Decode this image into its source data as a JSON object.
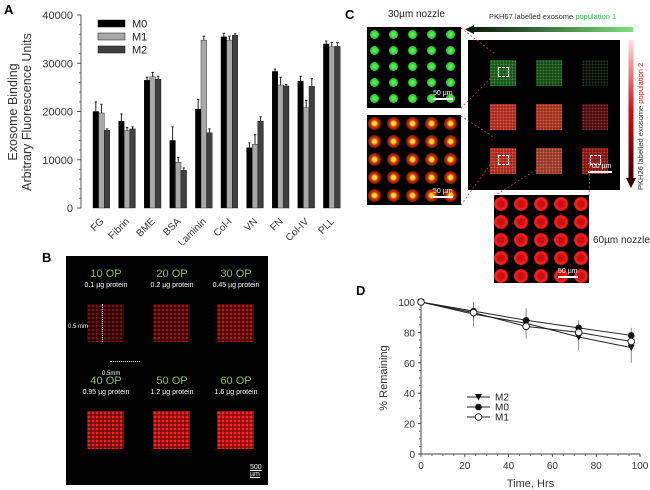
{
  "panels": {
    "A": "A",
    "B": "B",
    "C": "C",
    "D": "D"
  },
  "chart_data": [
    {
      "id": "A",
      "type": "bar",
      "title": "",
      "xlabel": "",
      "ylabel": [
        "Exosome Binding",
        "Arbitrary Fluorescence Units"
      ],
      "ylim": [
        0,
        40000
      ],
      "yticks": [
        0,
        10000,
        20000,
        30000,
        40000
      ],
      "ytick_labels": [
        "0",
        "10000",
        "20000",
        "30000",
        "40000"
      ],
      "categories": [
        "FG",
        "Fibrin",
        "BME",
        "BSA",
        "Laminin",
        "Col-I",
        "VN",
        "FN",
        "Col-IV",
        "PLL"
      ],
      "legend_position": "top-left",
      "series": [
        {
          "name": "M0",
          "color": "#000000",
          "values": [
            20000,
            18000,
            26500,
            14000,
            20500,
            35500,
            12500,
            28300,
            26300,
            34000
          ],
          "errors": [
            2000,
            1500,
            600,
            2800,
            2000,
            700,
            1000,
            500,
            1000,
            600
          ]
        },
        {
          "name": "M1",
          "color": "#a8a8a8",
          "values": [
            19700,
            16000,
            27200,
            9500,
            34800,
            34800,
            13200,
            25500,
            20800,
            33400
          ],
          "errors": [
            1800,
            700,
            900,
            1000,
            800,
            800,
            2000,
            1600,
            1500,
            900
          ]
        },
        {
          "name": "M2",
          "color": "#404040",
          "values": [
            16100,
            16400,
            26700,
            7800,
            15600,
            35800,
            18000,
            25300,
            25200,
            33500
          ],
          "errors": [
            300,
            400,
            600,
            500,
            800,
            300,
            900,
            300,
            1600,
            800
          ]
        }
      ]
    },
    {
      "id": "D",
      "type": "line",
      "title": "",
      "xlabel": "Time, Hrs",
      "ylabel": "% Remaining",
      "xlim": [
        0,
        100
      ],
      "ylim": [
        0,
        100
      ],
      "xticks": [
        0,
        20,
        40,
        60,
        80,
        100
      ],
      "yticks": [
        0,
        20,
        40,
        60,
        80,
        100
      ],
      "x": [
        0,
        24,
        48,
        72,
        96
      ],
      "legend_position": "center-left",
      "series": [
        {
          "name": "M2",
          "marker": "triangle-down-filled",
          "values": [
            100,
            92,
            86,
            77,
            70
          ],
          "errors": [
            0,
            8,
            8,
            9,
            10
          ]
        },
        {
          "name": "M0",
          "marker": "circle-filled",
          "values": [
            100,
            94,
            88,
            83,
            78
          ],
          "errors": [
            0,
            6,
            8,
            5,
            5
          ]
        },
        {
          "name": "M1",
          "marker": "circle-open",
          "values": [
            100,
            93,
            84,
            80,
            74
          ],
          "errors": [
            0,
            5,
            8,
            5,
            5
          ]
        }
      ]
    }
  ],
  "panelB": {
    "groups": [
      {
        "op": "10 OP",
        "protein": "0.1 µg protein",
        "intensity": 0.25
      },
      {
        "op": "20 OP",
        "protein": "0.2 µg protein",
        "intensity": 0.35
      },
      {
        "op": "30 OP",
        "protein": "0.45 µg protein",
        "intensity": 0.45
      },
      {
        "op": "40 OP",
        "protein": "0.95 µg protein",
        "intensity": 0.75
      },
      {
        "op": "50 OP",
        "protein": "1.2 µg protein",
        "intensity": 0.85
      },
      {
        "op": "60 OP",
        "protein": "1.6 µg protein",
        "intensity": 0.95
      }
    ],
    "dim_vertical": "0.5 mm",
    "dim_horizontal": "0.5mm",
    "scalebar": "500 µm"
  },
  "panelC": {
    "nozzle30": "30µm nozzle",
    "nozzle60": "60µm nozzle",
    "pkh67_label": "PKH67 labelled exosome ",
    "pkh67_pop": "population 1",
    "pkh26_label": "PKH26 labelled exosome ",
    "pkh26_pop": "population 2",
    "scale_50a": "50 µm",
    "scale_50b": "50 µm",
    "scale_50c": "50 µm",
    "scale_700": "700 µm",
    "green_color": "#2ecc40",
    "red_color": "#e01010"
  }
}
